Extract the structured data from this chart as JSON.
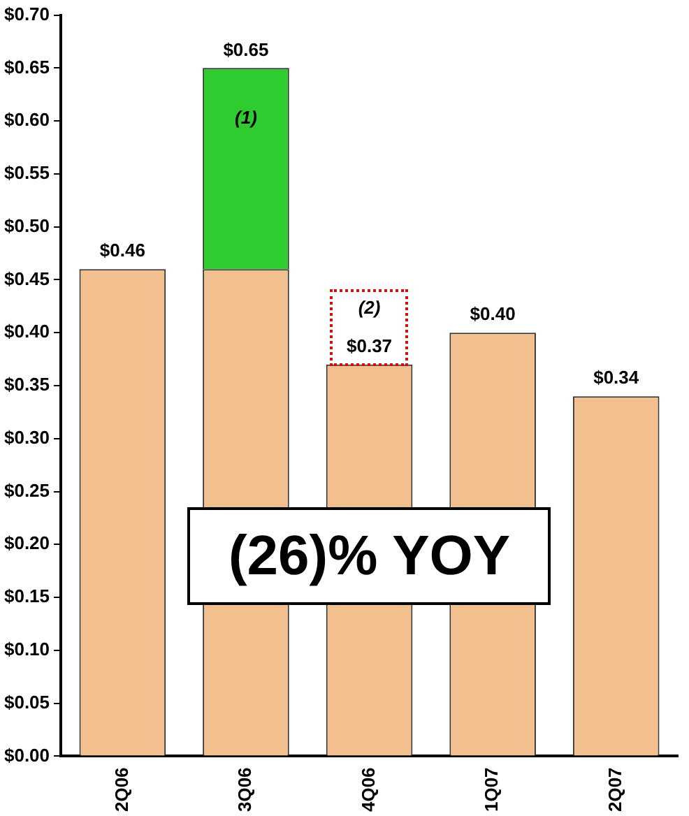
{
  "chart_data": {
    "type": "bar",
    "stacked": true,
    "categories": [
      "2Q06",
      "3Q06",
      "4Q06",
      "1Q07",
      "2Q07"
    ],
    "series": [
      {
        "color": "#f2c08e",
        "values": [
          0.46,
          0.46,
          0.37,
          0.4,
          0.34
        ]
      },
      {
        "color": "#2ecc2e",
        "values": [
          null,
          0.19,
          null,
          null,
          null
        ]
      }
    ],
    "totals": [
      "$0.46",
      "$0.65",
      "$0.37",
      "$0.40",
      "$0.34"
    ],
    "ylim": [
      0,
      0.7
    ],
    "yticks": [
      {
        "value": 0,
        "label": "$0.00"
      },
      {
        "value": 0.05,
        "label": "$0.05"
      },
      {
        "value": 0.1,
        "label": "$0.10"
      },
      {
        "value": 0.15,
        "label": "$0.15"
      },
      {
        "value": 0.2,
        "label": "$0.20"
      },
      {
        "value": 0.25,
        "label": "$0.25"
      },
      {
        "value": 0.3,
        "label": "$0.30"
      },
      {
        "value": 0.35,
        "label": "$0.35"
      },
      {
        "value": 0.4,
        "label": "$0.40"
      },
      {
        "value": 0.45,
        "label": "$0.45"
      },
      {
        "value": 0.5,
        "label": "$0.50"
      },
      {
        "value": 0.55,
        "label": "$0.55"
      },
      {
        "value": 0.6,
        "label": "$0.60"
      },
      {
        "value": 0.65,
        "label": "$0.65"
      },
      {
        "value": 0.7,
        "label": "$0.70"
      }
    ],
    "grid": false,
    "legend": false,
    "annotations": [
      "(1)",
      "(2)",
      "(26)% YOY"
    ]
  }
}
